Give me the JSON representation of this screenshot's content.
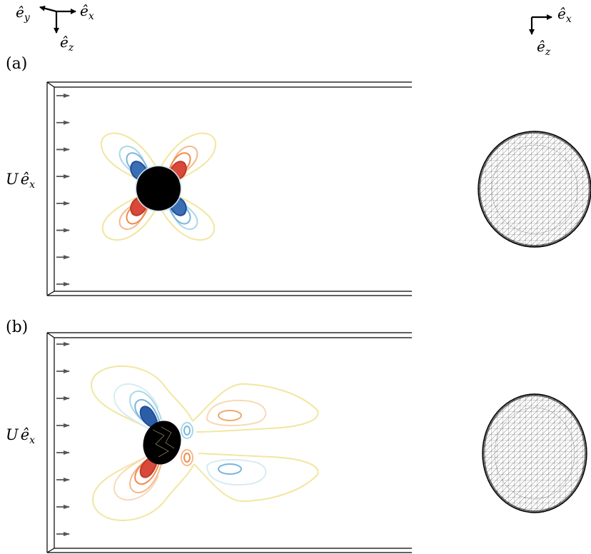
{
  "axes": {
    "left": {
      "ey": "ê",
      "ey_sub": "y",
      "ex": "ê",
      "ex_sub": "x",
      "ez": "ê",
      "ez_sub": "z"
    },
    "right": {
      "ex": "ê",
      "ex_sub": "x",
      "ez": "ê",
      "ez_sub": "z"
    }
  },
  "panels": [
    {
      "label": "(a)",
      "inflow_label": "U",
      "inflow_vec": "ê",
      "inflow_vec_sub": "x",
      "arrow_count": 8
    },
    {
      "label": "(b)",
      "inflow_label": "U",
      "inflow_vec": "ê",
      "inflow_vec_sub": "x",
      "arrow_count": 8
    }
  ],
  "colors": {
    "strong_positive": "#c0392b",
    "positive": "#ef8a4a",
    "weak_positive": "#f6d98f",
    "neutral": "#f2efb0",
    "weak_negative": "#a8d8e8",
    "negative": "#5b9bd5",
    "strong_negative": "#1f4e9a",
    "particle": "#000000",
    "arrow": "#555555"
  }
}
